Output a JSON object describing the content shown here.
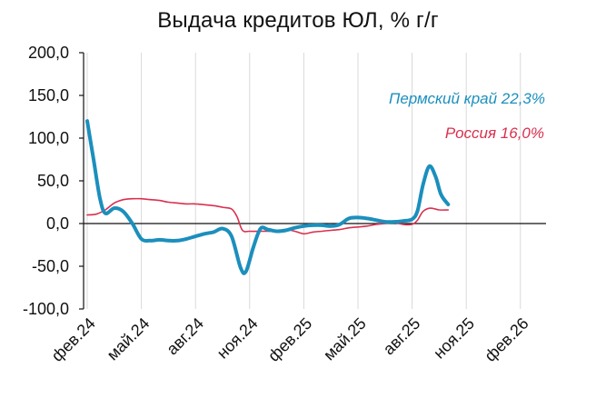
{
  "chart_data": {
    "type": "line",
    "title": "Выдача кредитов ЮЛ, % г/г",
    "xlabel": "",
    "ylabel": "",
    "ylim": [
      -100,
      200
    ],
    "y_ticks": [
      200,
      150,
      100,
      50,
      0,
      -50,
      -100
    ],
    "y_tick_labels": [
      "200,0",
      "150,0",
      "100,0",
      "50,0",
      "0,0",
      "-50,0",
      "-100,0"
    ],
    "x_range": [
      "2024-02",
      "2026-03"
    ],
    "x_tick_labels": [
      "фев.24",
      "май.24",
      "авг.24",
      "ноя.24",
      "фев.25",
      "май.25",
      "авг.25",
      "ноя.25",
      "фев.26"
    ],
    "grid": "vertical",
    "colors": {
      "perm": "#1b8fbd",
      "russia": "#d9304e",
      "grid": "#d9d9d9",
      "axis": "#111111"
    },
    "annotations": [
      {
        "series": "perm",
        "text": "Пермский край 22,3%"
      },
      {
        "series": "russia",
        "text": "Россия 16,0%"
      }
    ],
    "series": [
      {
        "key": "perm",
        "points": [
          [
            0.0,
            120
          ],
          [
            0.35,
            75
          ],
          [
            0.7,
            30
          ],
          [
            1.0,
            12
          ],
          [
            1.5,
            18
          ],
          [
            2.0,
            14
          ],
          [
            2.5,
            0
          ],
          [
            3.0,
            -18
          ],
          [
            3.5,
            -20
          ],
          [
            4.0,
            -19
          ],
          [
            4.5,
            -20
          ],
          [
            5.0,
            -20
          ],
          [
            5.5,
            -18
          ],
          [
            6.0,
            -15
          ],
          [
            6.5,
            -12
          ],
          [
            7.0,
            -10
          ],
          [
            7.5,
            -6
          ],
          [
            8.0,
            -15
          ],
          [
            8.5,
            -52
          ],
          [
            8.8,
            -56
          ],
          [
            9.2,
            -28
          ],
          [
            9.6,
            -6
          ],
          [
            10.0,
            -7
          ],
          [
            10.5,
            -9
          ],
          [
            11.0,
            -8
          ],
          [
            11.5,
            -5
          ],
          [
            12.0,
            -3
          ],
          [
            12.5,
            -2
          ],
          [
            13.0,
            -2
          ],
          [
            13.5,
            -3
          ],
          [
            14.0,
            -1
          ],
          [
            14.5,
            6
          ],
          [
            15.0,
            7
          ],
          [
            15.5,
            6
          ],
          [
            16.0,
            4
          ],
          [
            16.5,
            2
          ],
          [
            17.0,
            2
          ],
          [
            17.5,
            3
          ],
          [
            18.0,
            5
          ],
          [
            18.3,
            15
          ],
          [
            18.6,
            45
          ],
          [
            18.95,
            67
          ],
          [
            19.3,
            55
          ],
          [
            19.6,
            34
          ],
          [
            20.0,
            22.3
          ]
        ]
      },
      {
        "key": "russia",
        "points": [
          [
            0.0,
            10
          ],
          [
            0.5,
            11
          ],
          [
            1.0,
            16
          ],
          [
            1.5,
            24
          ],
          [
            2.0,
            28
          ],
          [
            2.5,
            29
          ],
          [
            3.0,
            29
          ],
          [
            3.5,
            28
          ],
          [
            4.0,
            27
          ],
          [
            4.5,
            25
          ],
          [
            5.0,
            24
          ],
          [
            5.5,
            23
          ],
          [
            6.0,
            23
          ],
          [
            6.5,
            22
          ],
          [
            7.0,
            21
          ],
          [
            7.5,
            19
          ],
          [
            8.0,
            17
          ],
          [
            8.3,
            8
          ],
          [
            8.6,
            -8
          ],
          [
            9.0,
            -9
          ],
          [
            9.5,
            -9
          ],
          [
            10.0,
            -9
          ],
          [
            10.5,
            -9
          ],
          [
            11.0,
            -7
          ],
          [
            11.5,
            -9
          ],
          [
            12.0,
            -12
          ],
          [
            12.5,
            -10
          ],
          [
            13.0,
            -9
          ],
          [
            13.5,
            -8
          ],
          [
            14.0,
            -7
          ],
          [
            14.5,
            -5
          ],
          [
            15.0,
            -4
          ],
          [
            15.5,
            -3
          ],
          [
            16.0,
            -1
          ],
          [
            16.5,
            0
          ],
          [
            17.0,
            1
          ],
          [
            17.5,
            -1
          ],
          [
            18.0,
            -1
          ],
          [
            18.3,
            4
          ],
          [
            18.6,
            14
          ],
          [
            19.0,
            18
          ],
          [
            19.5,
            16
          ],
          [
            20.0,
            16.0
          ]
        ]
      }
    ]
  }
}
